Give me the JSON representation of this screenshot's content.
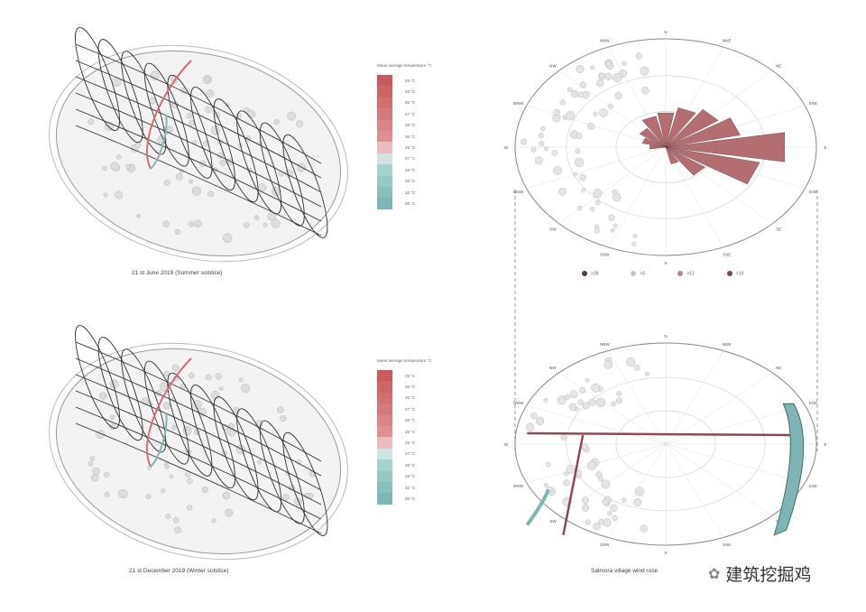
{
  "sun_charts": [
    {
      "caption": "21 st June 2019  (Summer solstice)"
    },
    {
      "caption": "21 st December 2019  (Winter solstice)"
    }
  ],
  "temperature_legend": {
    "title": "Mean average temperature °C",
    "items": [
      {
        "label": "25 °C",
        "color": "#c85a5f"
      },
      {
        "label": "26 °C",
        "color": "#cc6468"
      },
      {
        "label": "26 °C",
        "color": "#d06e72"
      },
      {
        "label": "27 °C",
        "color": "#d47a7e"
      },
      {
        "label": "28 °C",
        "color": "#d88488"
      },
      {
        "label": "26 °C",
        "color": "#dc9094"
      },
      {
        "label": "25 °C",
        "color": "#ebbcbf"
      },
      {
        "label": "27 °C",
        "color": "#cfe3e2"
      },
      {
        "label": "28 °C",
        "color": "#a9d1d0"
      },
      {
        "label": "28 °C",
        "color": "#9ac8c7"
      },
      {
        "label": "32 °C",
        "color": "#8bbfbe"
      },
      {
        "label": "28 °C",
        "color": "#7fb6b5"
      }
    ]
  },
  "wind_legend": [
    {
      "label": ">28",
      "color": "#5a3a44"
    },
    {
      "label": ">5",
      "color": "#c9c0c4"
    },
    {
      "label": ">12",
      "color": "#b8838c"
    },
    {
      "label": ">19",
      "color": "#7a4652"
    }
  ],
  "compass": [
    "N",
    "NNE",
    "NE",
    "ENE",
    "E",
    "ESE",
    "SE",
    "SSE",
    "S",
    "SSW",
    "SW",
    "WSW",
    "W",
    "WNW",
    "NW",
    "NNW"
  ],
  "wind_caption": "Salmora village  wind rose",
  "watermark": "建筑挖掘鸡"
}
